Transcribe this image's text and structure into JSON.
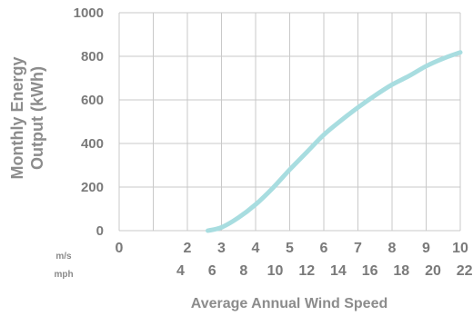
{
  "chart_data": {
    "type": "line",
    "title": "",
    "xlabel": "Average Annual Wind Speed",
    "ylabel_lines": [
      "Monthly Energy",
      "Output (kWh)"
    ],
    "xlim": [
      0,
      10
    ],
    "ylim": [
      0,
      1000
    ],
    "grid": true,
    "y_ticks": [
      "0",
      "200",
      "400",
      "600",
      "800",
      "1000"
    ],
    "y_tick_values": [
      0,
      200,
      400,
      600,
      800,
      1000
    ],
    "x_ticks_ms": [
      "0",
      "2",
      "3",
      "4",
      "5",
      "6",
      "7",
      "8",
      "9",
      "10"
    ],
    "x_tick_values_ms": [
      0,
      2,
      3,
      4,
      5,
      6,
      7,
      8,
      9,
      10
    ],
    "x_ticks_mph": [
      "4",
      "6",
      "8",
      "10",
      "12",
      "14",
      "16",
      "18",
      "20",
      "22"
    ],
    "x_tick_values_mph": [
      4,
      6,
      8,
      10,
      12,
      14,
      16,
      18,
      20,
      22
    ],
    "unit_primary": "m/s",
    "unit_secondary": "mph",
    "series": [
      {
        "color": "#a8dde0",
        "x": [
          2.6,
          3.0,
          3.5,
          4.0,
          4.5,
          5.0,
          5.5,
          6.0,
          6.5,
          7.0,
          7.5,
          8.0,
          8.5,
          9.0,
          9.5,
          10.0
        ],
        "y": [
          0,
          15,
          60,
          120,
          195,
          280,
          360,
          440,
          505,
          565,
          620,
          670,
          710,
          755,
          790,
          818
        ]
      }
    ]
  }
}
